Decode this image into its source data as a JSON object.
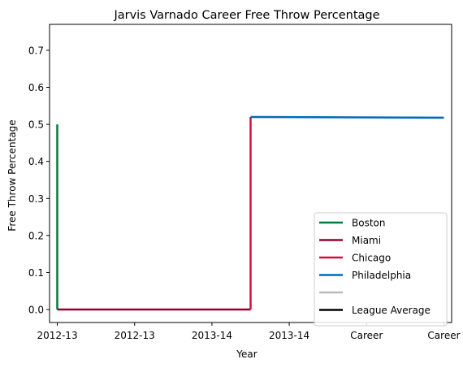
{
  "chart_data": {
    "type": "line",
    "title": "Jarvis Varnado Career Free Throw Percentage",
    "xlabel": "Year",
    "ylabel": "Free Throw Percentage",
    "x_tick_labels": [
      "2012-13",
      "2012-13",
      "2013-14",
      "2013-14",
      "Career",
      "Career"
    ],
    "xlim": [
      -0.1,
      5.1
    ],
    "ylim": [
      -0.035,
      0.77
    ],
    "y_ticks": [
      0.0,
      0.1,
      0.2,
      0.3,
      0.4,
      0.5,
      0.6,
      0.7
    ],
    "y_tick_labels": [
      "0.0",
      "0.1",
      "0.2",
      "0.3",
      "0.4",
      "0.5",
      "0.6",
      "0.7"
    ],
    "grid": false,
    "legend_position": "lower-right",
    "series": [
      {
        "name": "Boston",
        "color": "#007a3d",
        "points": [
          [
            0,
            0.5
          ],
          [
            0,
            0.0
          ]
        ]
      },
      {
        "name": "Miami",
        "color": "#98002e",
        "points": [
          [
            0,
            0.0
          ],
          [
            2.5,
            0.0
          ]
        ]
      },
      {
        "name": "Chicago",
        "color": "#ce1141",
        "points": [
          [
            2.5,
            0.0
          ],
          [
            2.5,
            0.52
          ]
        ]
      },
      {
        "name": "Philadelphia",
        "color": "#006bb6",
        "points": [
          [
            2.5,
            0.52
          ],
          [
            5,
            0.518
          ]
        ]
      },
      {
        "name": "",
        "color": "#bbbbbb",
        "points": []
      },
      {
        "name": "League Average",
        "color": "#000000",
        "points": []
      }
    ]
  }
}
